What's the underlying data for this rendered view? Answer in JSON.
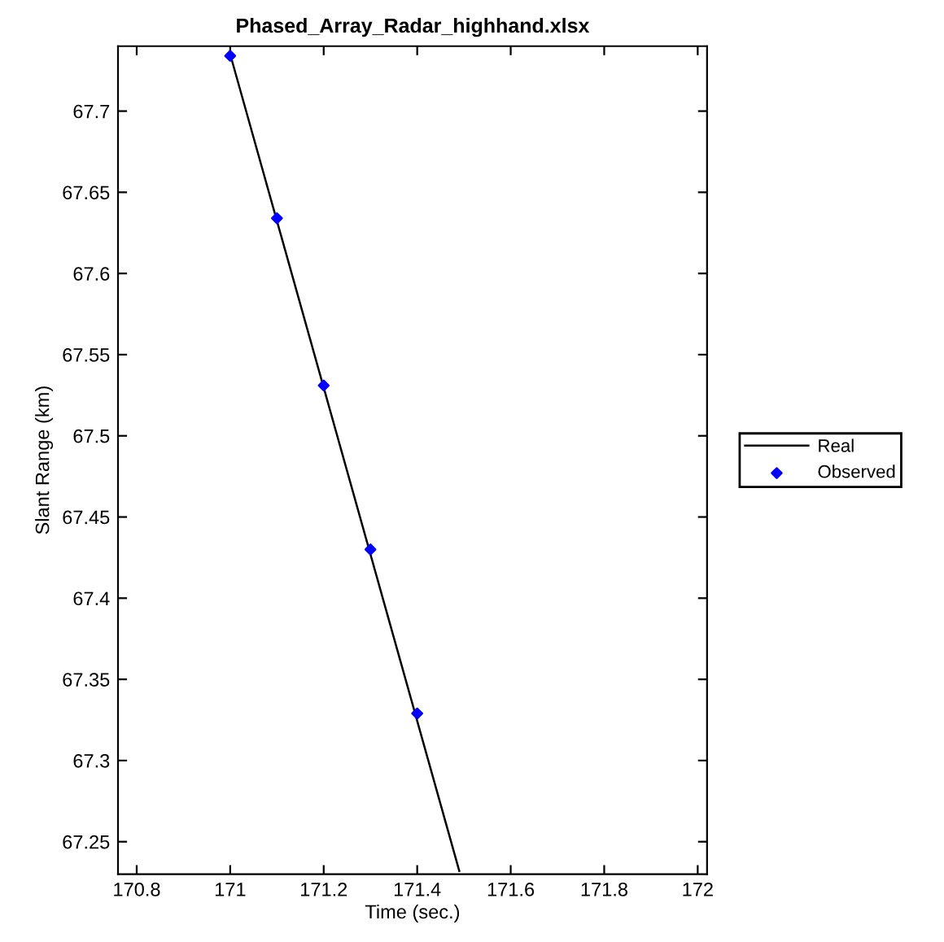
{
  "chart_data": {
    "type": "line",
    "title": "Phased_Array_Radar_highhand.xlsx",
    "xlabel": "Time (sec.)",
    "ylabel": "Slant Range (km)",
    "series": [
      {
        "name": "Real",
        "color": "#000000",
        "marker": "none",
        "line_style": "solid",
        "x": [
          171.0,
          171.49
        ],
        "values": [
          67.735,
          67.232
        ]
      },
      {
        "name": "Observed",
        "type": "scatter",
        "color": "#0000ff",
        "marker": "diamond",
        "x": [
          171.0,
          171.1,
          171.2,
          171.3,
          171.4
        ],
        "values": [
          67.734,
          67.634,
          67.531,
          67.43,
          67.329
        ]
      }
    ],
    "xlim": [
      170.76,
      172.02
    ],
    "xticks": [
      170.8,
      171,
      171.2,
      171.4,
      171.6,
      171.8,
      172
    ],
    "ylim": [
      67.23,
      67.74
    ],
    "yticks": [
      67.25,
      67.3,
      67.35,
      67.4,
      67.45,
      67.5,
      67.55,
      67.6,
      67.65,
      67.7
    ],
    "grid": false,
    "legend": "right"
  }
}
